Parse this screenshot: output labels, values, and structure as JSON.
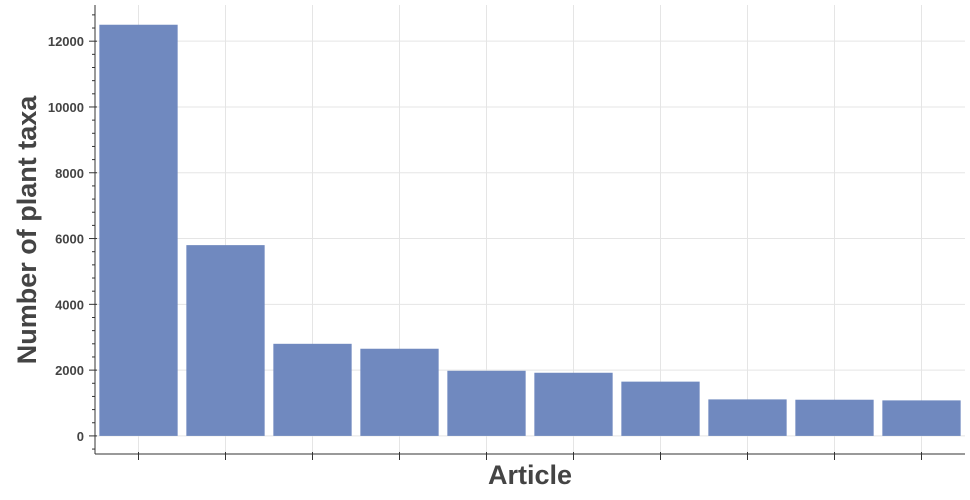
{
  "chart_data": {
    "type": "bar",
    "categories": [
      "",
      "",
      "",
      "",
      "",
      "",
      "",
      "",
      "",
      ""
    ],
    "values": [
      12500,
      5800,
      2800,
      2650,
      1980,
      1920,
      1650,
      1110,
      1100,
      1080
    ],
    "xlabel": "Article",
    "ylabel": "Number of plant taxa",
    "ylim": [
      -550,
      13100
    ],
    "yticks": [
      0,
      2000,
      4000,
      6000,
      8000,
      10000,
      12000
    ],
    "grid": true,
    "bar_color": "#7089bf"
  }
}
